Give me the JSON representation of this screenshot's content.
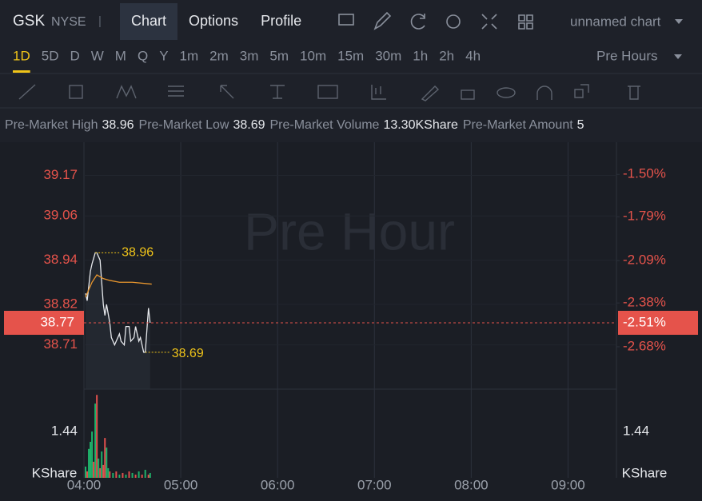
{
  "header": {
    "symbol": "GSK",
    "exchange": "NYSE",
    "separator": "|",
    "tabs": [
      "Chart",
      "Options",
      "Profile"
    ],
    "active_tab": 0,
    "chart_name": "unnamed chart"
  },
  "timeframes": {
    "items": [
      "1D",
      "5D",
      "D",
      "W",
      "M",
      "Q",
      "Y",
      "1m",
      "2m",
      "3m",
      "5m",
      "10m",
      "15m",
      "30m",
      "1h",
      "2h",
      "4h"
    ],
    "active": 0,
    "session": "Pre Hours"
  },
  "stats": [
    {
      "label": "Pre-Market High",
      "value": "38.96"
    },
    {
      "label": "Pre-Market Low",
      "value": "38.69"
    },
    {
      "label": "Pre-Market Volume",
      "value": "13.30KShare"
    },
    {
      "label": "Pre-Market Amount",
      "value": "5"
    }
  ],
  "chart_data": {
    "type": "line",
    "watermark": "Pre Hour",
    "series": [
      {
        "color": "#e6e8ec",
        "x": [
          241,
          242,
          244,
          245,
          247,
          248,
          250,
          251,
          252,
          253,
          254,
          256,
          257,
          259,
          260,
          262,
          263,
          265,
          266,
          268,
          269,
          271,
          272,
          274,
          275,
          277,
          278,
          280,
          281
        ],
        "values": [
          38.85,
          38.83,
          38.91,
          38.93,
          38.96,
          38.96,
          38.94,
          38.88,
          38.82,
          38.79,
          38.82,
          38.77,
          38.73,
          38.71,
          38.72,
          38.74,
          38.72,
          38.71,
          38.76,
          38.76,
          38.72,
          38.73,
          38.76,
          38.72,
          38.73,
          38.69,
          38.69,
          38.81,
          38.77
        ]
      },
      {
        "color": "#e8962e",
        "x": [
          241,
          243,
          245,
          248,
          252,
          256,
          262,
          270,
          282
        ],
        "values": [
          38.84,
          38.86,
          38.88,
          38.9,
          38.89,
          38.885,
          38.88,
          38.88,
          38.875
        ]
      }
    ],
    "high": 38.96,
    "low": 38.69,
    "xlim": [
      240,
      570
    ],
    "xticks": [
      {
        "value": 240,
        "label": "04:00"
      },
      {
        "value": 300,
        "label": "05:00"
      },
      {
        "value": 360,
        "label": "06:00"
      },
      {
        "value": 420,
        "label": "07:00"
      },
      {
        "value": 480,
        "label": "08:00"
      },
      {
        "value": 540,
        "label": "09:00"
      }
    ],
    "ylim": [
      38.59,
      39.26
    ],
    "yticks": [
      39.17,
      39.06,
      38.94,
      38.82,
      38.71
    ],
    "y2lim": [
      -2.97,
      -1.28
    ],
    "y2ticks": [
      {
        "value": -1.5,
        "label": "-1.50%"
      },
      {
        "value": -1.79,
        "label": "-1.79%"
      },
      {
        "value": -2.09,
        "label": "-2.09%"
      },
      {
        "value": -2.38,
        "label": "-2.38%"
      },
      {
        "value": -2.68,
        "label": "-2.68%"
      }
    ],
    "tick_color": "#e5534b",
    "last_price": 38.77,
    "last_change": {
      "value": -2.51,
      "label": "-2.51%"
    },
    "last_color": "#e5534b",
    "grid": true,
    "volume": {
      "unit": "KShare",
      "ylim": [
        0,
        2.76
      ],
      "yticks": [
        1.44
      ],
      "x": [
        241,
        242,
        243,
        244,
        245,
        246,
        247,
        248,
        249,
        250,
        251,
        252,
        253,
        254,
        255,
        256,
        258,
        260,
        262,
        264,
        266,
        268,
        270,
        272,
        274,
        276,
        278,
        280,
        281
      ],
      "values": [
        0.35,
        0.2,
        0.9,
        1.12,
        1.44,
        0.5,
        2.31,
        2.58,
        0.6,
        0.3,
        0.82,
        0.4,
        1.24,
        0.94,
        0.3,
        0.2,
        0.15,
        0.2,
        0.1,
        0.15,
        0.1,
        0.2,
        0.15,
        0.1,
        0.2,
        0.1,
        0.25,
        0.1,
        0.15
      ],
      "colors": [
        "#1fb16a",
        "#e0504d",
        "#1fb16a",
        "#1fb16a",
        "#1fb16a",
        "#e0504d",
        "#1fb16a",
        "#e0504d",
        "#1fb16a",
        "#e0504d",
        "#1fb16a",
        "#e0504d",
        "#e0504d",
        "#1fb16a",
        "#1fb16a",
        "#e0504d",
        "#1fb16a",
        "#e0504d",
        "#1fb16a",
        "#e0504d",
        "#1fb16a",
        "#e0504d",
        "#1fb16a",
        "#e0504d",
        "#1fb16a",
        "#e0504d",
        "#1fb16a",
        "#e0504d",
        "#1fb16a"
      ]
    }
  }
}
